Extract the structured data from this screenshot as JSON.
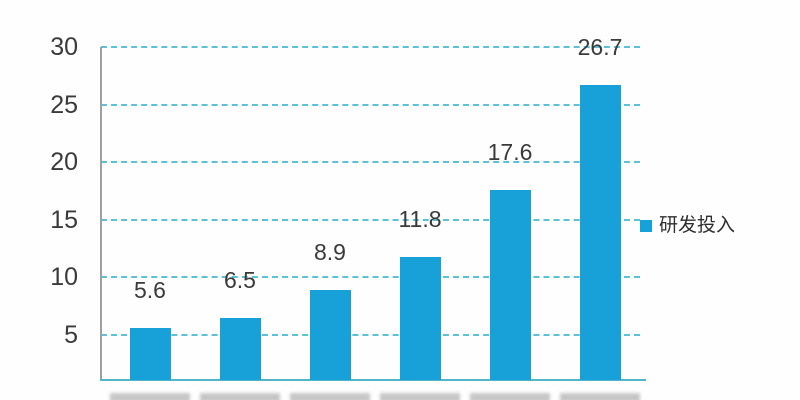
{
  "chart_data": {
    "type": "bar",
    "title": "",
    "xlabel": "",
    "ylabel": "",
    "series": [
      {
        "name": "研发投入",
        "color": "#18a0d8",
        "values": [
          5.6,
          6.5,
          8.9,
          11.8,
          17.6,
          26.7
        ]
      }
    ],
    "data_labels": [
      "5.6",
      "6.5",
      "8.9",
      "11.8",
      "17.6",
      "26.7"
    ],
    "y_ticks": [
      5,
      10,
      15,
      20,
      25,
      30
    ],
    "ylim": [
      0,
      30
    ],
    "grid": "horizontal-dashed",
    "x_axis_labels": "cropped-out-of-frame",
    "legend": {
      "position": "right-middle",
      "items": [
        {
          "label": "研发投入",
          "color": "#18a0d8"
        }
      ]
    }
  },
  "colors": {
    "bar": "#18a0d8",
    "gridline": "#5cc0d6",
    "baseline": "#53b6c6",
    "axis": "#9f9f9f",
    "tick_text": "#3a3a3a",
    "legend_text": "#2e2e2e"
  }
}
